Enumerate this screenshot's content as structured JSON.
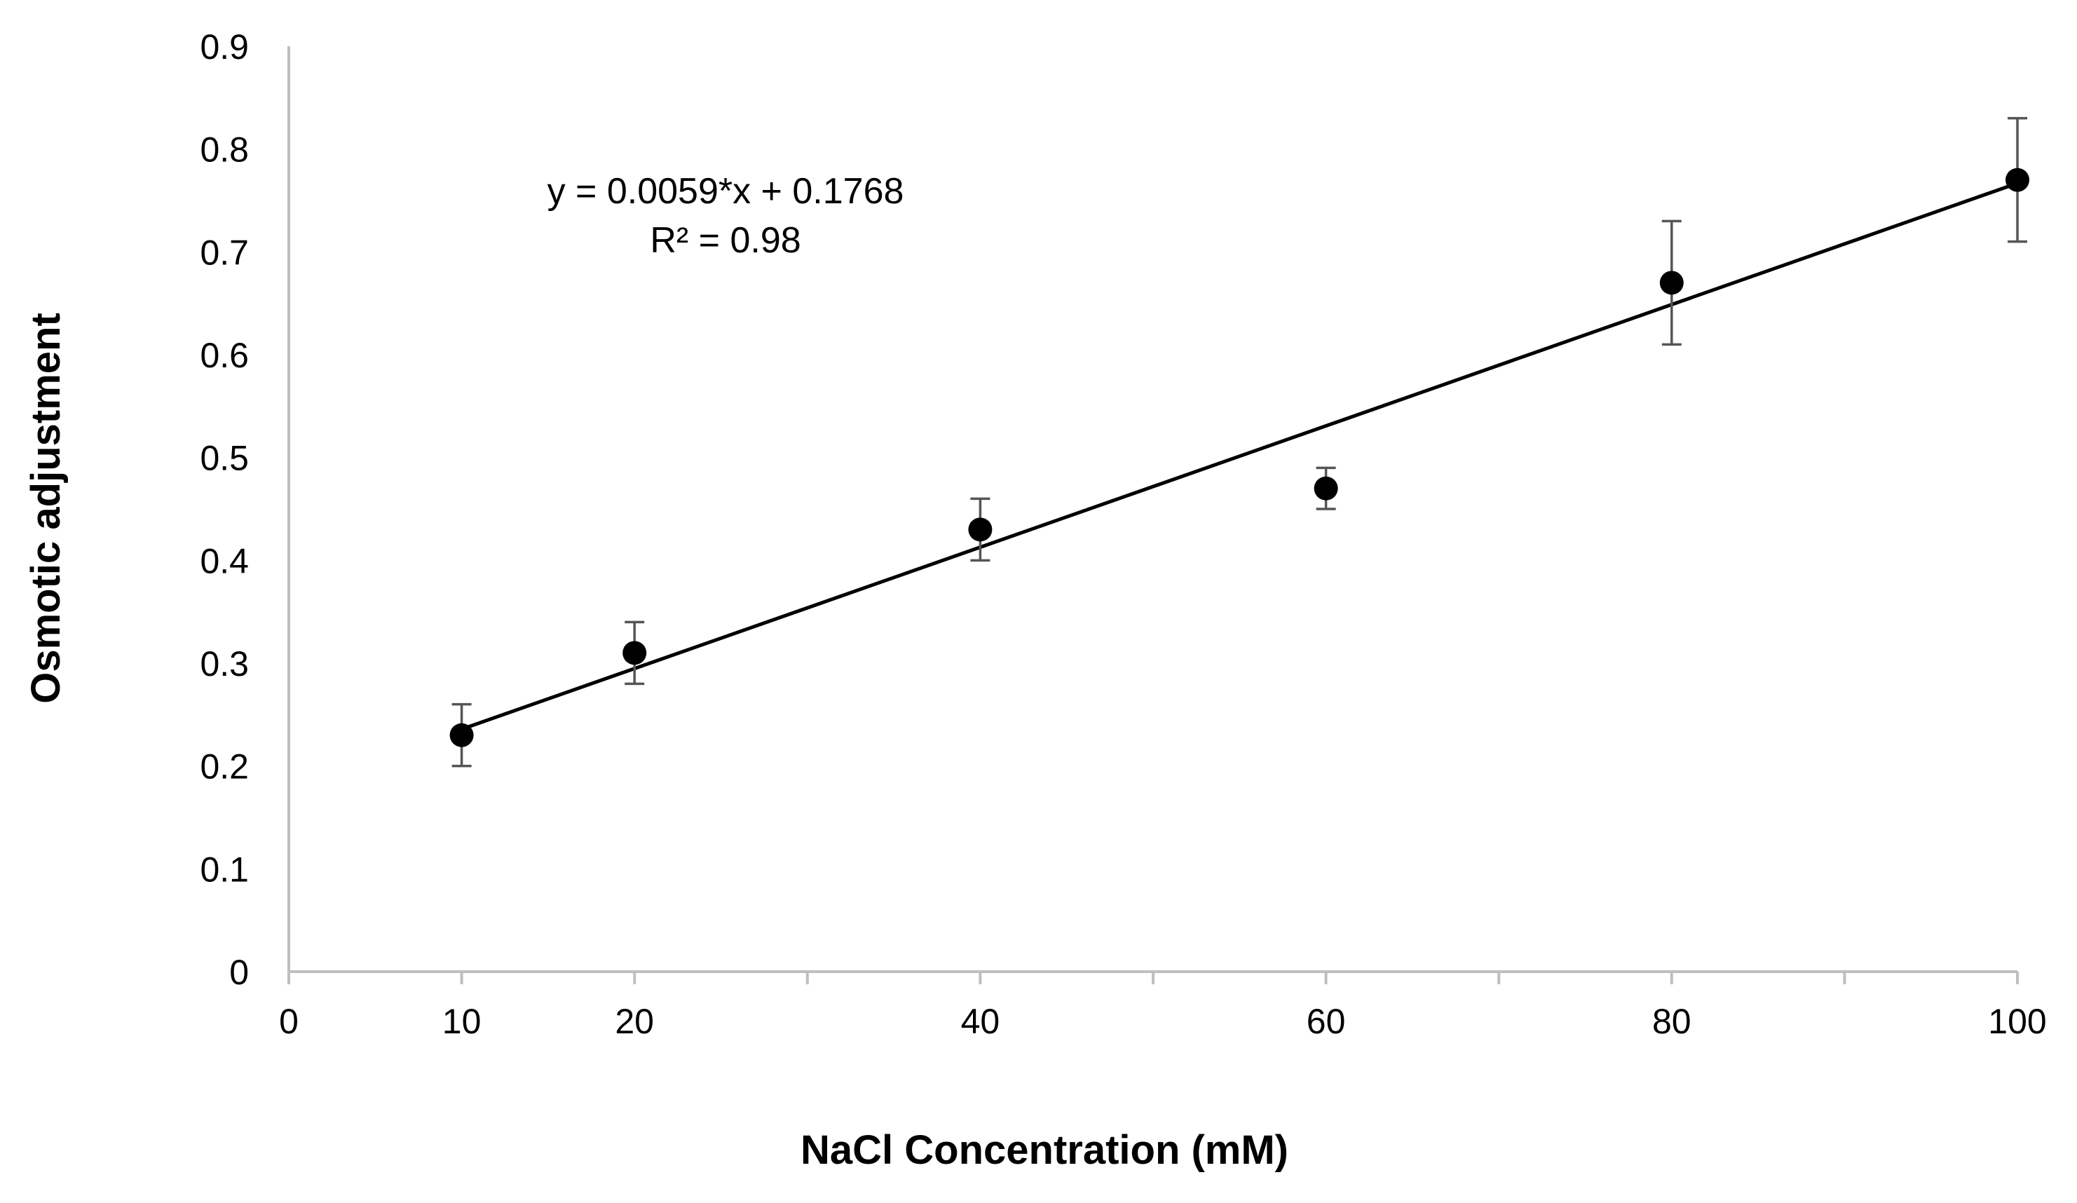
{
  "chart_data": {
    "type": "scatter",
    "title": "",
    "xlabel": "NaCl Concentration (mM)",
    "ylabel": "Osmotic adjustment",
    "xlim": [
      0,
      100
    ],
    "ylim": [
      0,
      0.9
    ],
    "x_minor_ticks": [
      30,
      50,
      70,
      90
    ],
    "x_tick_labels": [
      "0",
      "10",
      "20",
      "40",
      "60",
      "80",
      "100"
    ],
    "x_tick_values": [
      0,
      10,
      20,
      40,
      60,
      80,
      100
    ],
    "y_tick_labels": [
      "0",
      "0.1",
      "0.2",
      "0.3",
      "0.4",
      "0.5",
      "0.6",
      "0.7",
      "0.8",
      "0.9"
    ],
    "y_tick_values": [
      0,
      0.1,
      0.2,
      0.3,
      0.4,
      0.5,
      0.6,
      0.7,
      0.8,
      0.9
    ],
    "grid": false,
    "series": [
      {
        "name": "Osmotic adjustment",
        "x": [
          10,
          20,
          40,
          60,
          80,
          100
        ],
        "y": [
          0.23,
          0.31,
          0.43,
          0.47,
          0.67,
          0.77
        ],
        "error": [
          0.03,
          0.03,
          0.03,
          0.02,
          0.06,
          0.06
        ],
        "color": "#000000"
      }
    ],
    "trendline": {
      "slope": 0.0059,
      "intercept": 0.1768,
      "x_range": [
        10,
        100
      ],
      "color": "#000000"
    },
    "annotations": {
      "equation": "y = 0.0059*x + 0.1768",
      "r_squared": "R² = 0.98"
    },
    "axis_color": "#bfbfbf"
  }
}
